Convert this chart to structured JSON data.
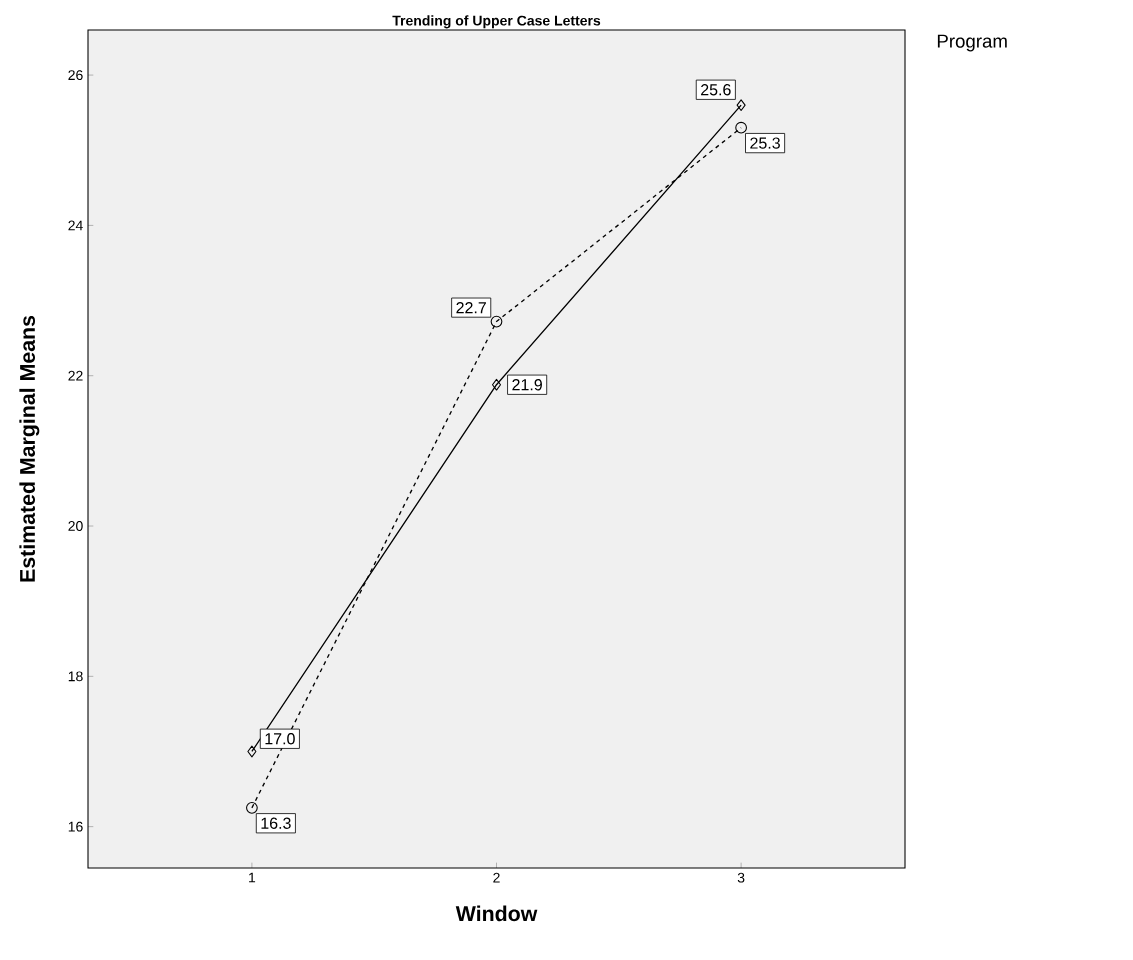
{
  "chart_data": {
    "type": "line",
    "title": "Trending of Upper Case Letters",
    "xlabel": "Window",
    "ylabel": "Estimated Marginal Means",
    "legend_title": "Program",
    "x": [
      1,
      2,
      3
    ],
    "xlim": [
      0.33,
      3.67
    ],
    "xticks": [
      1,
      2,
      3
    ],
    "ylim": [
      15.45,
      26.6
    ],
    "yticks": [
      16,
      18,
      20,
      22,
      24,
      26
    ],
    "series": [
      {
        "color": "#000000",
        "values": [
          16.25,
          22.72,
          25.3
        ],
        "value_labels": [
          "16.3",
          "22.7",
          "25.3"
        ],
        "marker": "circle",
        "line_style": "dashed"
      },
      {
        "color": "#000000",
        "values": [
          17.0,
          21.88,
          25.6
        ],
        "value_labels": [
          "17.0",
          "21.9",
          "25.6"
        ],
        "marker": "diamond",
        "line_style": "solid"
      }
    ]
  }
}
